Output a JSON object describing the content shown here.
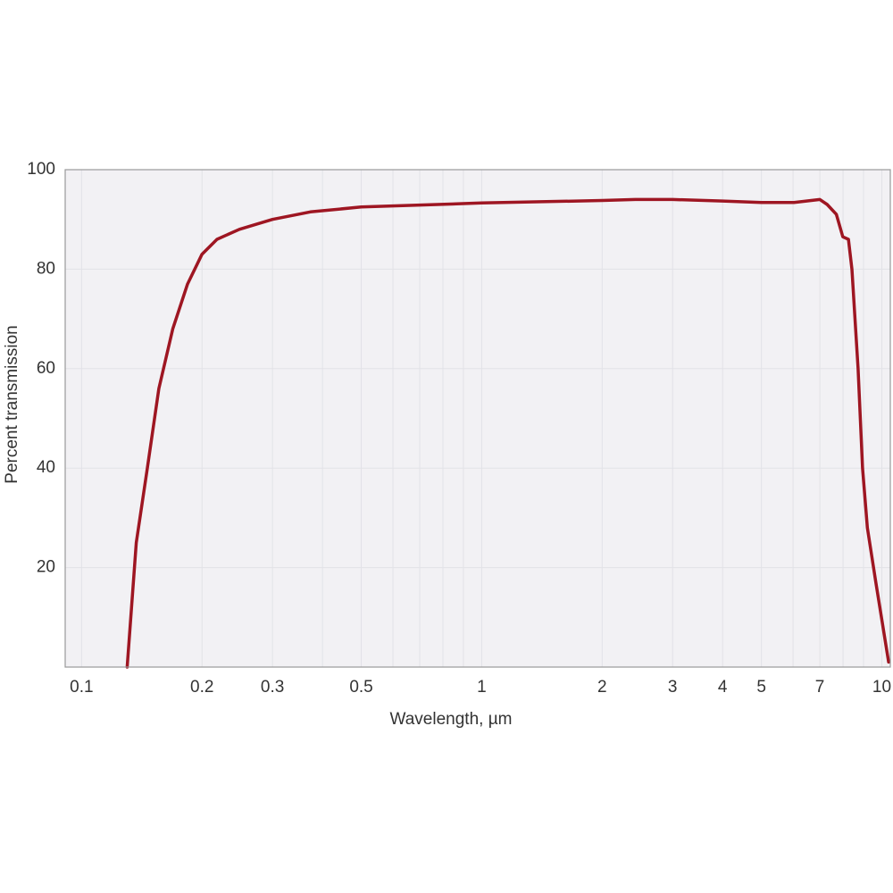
{
  "chart_data": {
    "type": "line",
    "xlabel": "Wavelength, µm",
    "ylabel": "Percent transmission",
    "xscale": "log",
    "grid": true,
    "color": "#9e1622",
    "xlim": [
      0.091,
      10.5
    ],
    "ylim": [
      0,
      100
    ],
    "xticks": [
      0.1,
      0.2,
      0.3,
      0.5,
      1,
      2,
      3,
      4,
      5,
      7,
      10
    ],
    "xminorticks": [
      0.4,
      0.6,
      0.7,
      0.8,
      0.9,
      6,
      8,
      9
    ],
    "yticks": [
      20,
      40,
      60,
      80,
      100
    ],
    "x": [
      0.13,
      0.137,
      0.146,
      0.156,
      0.169,
      0.184,
      0.2,
      0.218,
      0.248,
      0.3,
      0.373,
      0.5,
      1,
      2,
      2.42,
      3,
      4,
      5,
      6.03,
      7,
      7.3,
      7.7,
      7.99,
      8.25,
      8.42,
      8.72,
      8.95,
      9.2,
      9.66,
      10.4
    ],
    "values": [
      0,
      25,
      40,
      56,
      68,
      77,
      83,
      86,
      88,
      90,
      91.5,
      92.5,
      93.3,
      93.8,
      94,
      94,
      93.7,
      93.4,
      93.4,
      94,
      93,
      91,
      86.5,
      86,
      80,
      60,
      40,
      28,
      17,
      1
    ]
  }
}
